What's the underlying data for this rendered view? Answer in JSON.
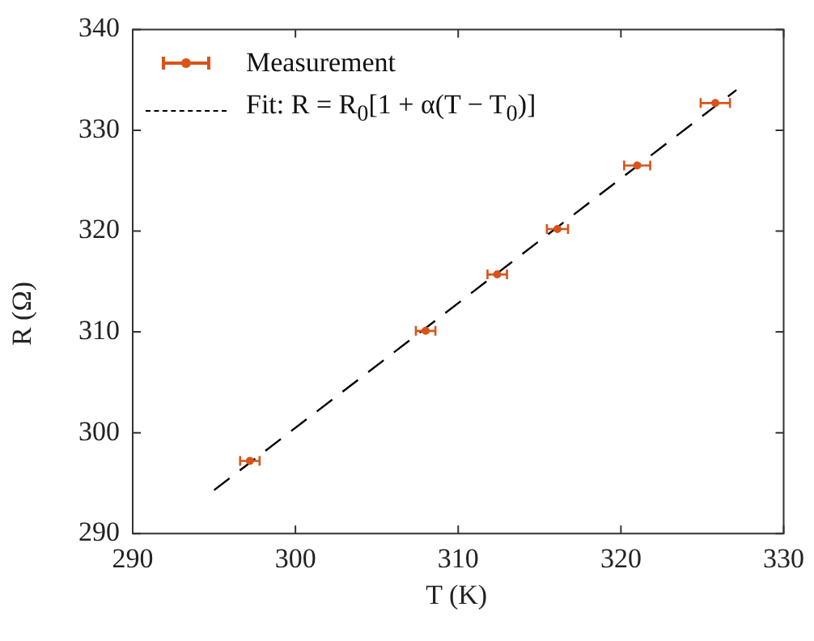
{
  "chart_data": {
    "type": "scatter",
    "xlabel": "T (K)",
    "ylabel": "R (Ω)",
    "xlim": [
      290,
      330
    ],
    "xticks": [
      290,
      300,
      310,
      320,
      330
    ],
    "ylim": [
      290,
      340
    ],
    "yticks": [
      290,
      300,
      310,
      320,
      330,
      340
    ],
    "grid": false,
    "legend": "top left",
    "marker": "circle",
    "series": [
      {
        "name": "Measurement",
        "color": "#d95319",
        "x": [
          297.2,
          308.0,
          312.4,
          316.1,
          321.0,
          325.8
        ],
        "values": [
          297.2,
          310.1,
          315.7,
          320.2,
          326.5,
          332.7
        ],
        "xerrors": [
          0.6,
          0.6,
          0.6,
          0.65,
          0.8,
          0.9
        ]
      },
      {
        "name": "Fit: R = R$_{0}$[1 + α(T − T$_{0}$)]",
        "type": "line",
        "color": "#000000",
        "line_style": "dashed",
        "marker": "none",
        "x": [
          295.0,
          327.1
        ],
        "values": [
          294.3,
          334.0
        ]
      }
    ]
  }
}
